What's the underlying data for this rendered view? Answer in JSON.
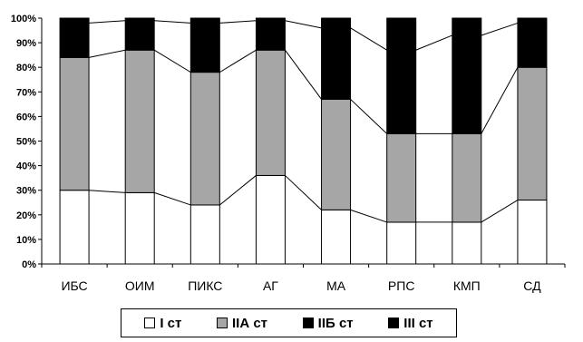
{
  "chart_data": {
    "type": "bar",
    "stacked": true,
    "categories": [
      "ИБС",
      "ОИМ",
      "ПИКС",
      "АГ",
      "МА",
      "РПС",
      "КМП",
      "СД"
    ],
    "series": [
      {
        "name": "I ст",
        "color": "#ffffff",
        "values": [
          30,
          29,
          24,
          36,
          22,
          17,
          17,
          26
        ]
      },
      {
        "name": "IIА ст",
        "color": "#a6a6a6",
        "values": [
          54,
          58,
          54,
          51,
          45,
          36,
          36,
          54
        ]
      },
      {
        "name": "IIБ ст",
        "color": "#000000",
        "values": [
          14,
          12,
          20,
          12,
          29,
          34,
          40,
          18
        ]
      },
      {
        "name": "III ст",
        "color": "#000000",
        "values": [
          2,
          1,
          2,
          1,
          4,
          13,
          7,
          2
        ]
      }
    ],
    "ylim": [
      0,
      100
    ],
    "yticks": [
      "0%",
      "10%",
      "20%",
      "30%",
      "40%",
      "50%",
      "60%",
      "70%",
      "80%",
      "90%",
      "100%"
    ],
    "title": "",
    "xlabel": "",
    "ylabel": "",
    "legend_position": "bottom",
    "grid": false
  }
}
